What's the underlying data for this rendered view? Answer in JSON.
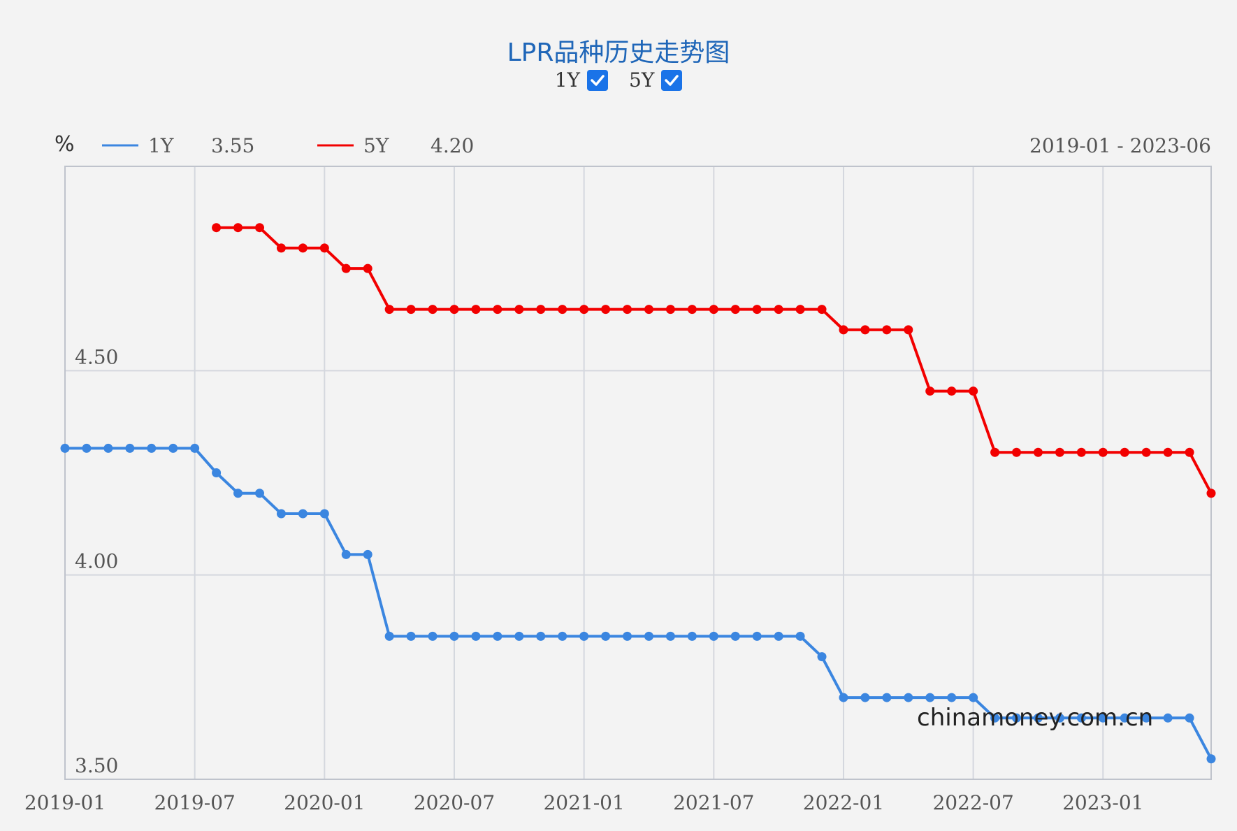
{
  "header": {
    "title": "LPR品种历史走势图",
    "toggles": [
      {
        "label": "1Y",
        "checked": true
      },
      {
        "label": "5Y",
        "checked": true
      }
    ]
  },
  "legend": {
    "unit": "%",
    "items": [
      {
        "name": "1Y",
        "latest": "3.55",
        "color": "#3b86e0"
      },
      {
        "name": "5Y",
        "latest": "4.20",
        "color": "#f20000"
      }
    ],
    "range_text": "2019-01 - 2023-06"
  },
  "watermark": "chinamoney.com.cn",
  "chart_data": {
    "type": "line",
    "x": [
      "2019-01",
      "2019-02",
      "2019-03",
      "2019-04",
      "2019-05",
      "2019-06",
      "2019-07",
      "2019-08",
      "2019-09",
      "2019-10",
      "2019-11",
      "2019-12",
      "2020-01",
      "2020-02",
      "2020-03",
      "2020-04",
      "2020-05",
      "2020-06",
      "2020-07",
      "2020-08",
      "2020-09",
      "2020-10",
      "2020-11",
      "2020-12",
      "2021-01",
      "2021-02",
      "2021-03",
      "2021-04",
      "2021-05",
      "2021-06",
      "2021-07",
      "2021-08",
      "2021-09",
      "2021-10",
      "2021-11",
      "2021-12",
      "2022-01",
      "2022-02",
      "2022-03",
      "2022-04",
      "2022-05",
      "2022-06",
      "2022-07",
      "2022-08",
      "2022-09",
      "2022-10",
      "2022-11",
      "2022-12",
      "2023-01",
      "2023-02",
      "2023-03",
      "2023-04",
      "2023-05",
      "2023-06"
    ],
    "series": [
      {
        "name": "1Y",
        "color": "#3b86e0",
        "values": [
          4.31,
          4.31,
          4.31,
          4.31,
          4.31,
          4.31,
          4.31,
          4.25,
          4.2,
          4.2,
          4.15,
          4.15,
          4.15,
          4.05,
          4.05,
          3.85,
          3.85,
          3.85,
          3.85,
          3.85,
          3.85,
          3.85,
          3.85,
          3.85,
          3.85,
          3.85,
          3.85,
          3.85,
          3.85,
          3.85,
          3.85,
          3.85,
          3.85,
          3.85,
          3.85,
          3.8,
          3.7,
          3.7,
          3.7,
          3.7,
          3.7,
          3.7,
          3.7,
          3.65,
          3.65,
          3.65,
          3.65,
          3.65,
          3.65,
          3.65,
          3.65,
          3.65,
          3.65,
          3.55
        ]
      },
      {
        "name": "5Y",
        "color": "#f20000",
        "values": [
          null,
          null,
          null,
          null,
          null,
          null,
          null,
          4.85,
          4.85,
          4.85,
          4.8,
          4.8,
          4.8,
          4.75,
          4.75,
          4.65,
          4.65,
          4.65,
          4.65,
          4.65,
          4.65,
          4.65,
          4.65,
          4.65,
          4.65,
          4.65,
          4.65,
          4.65,
          4.65,
          4.65,
          4.65,
          4.65,
          4.65,
          4.65,
          4.65,
          4.65,
          4.6,
          4.6,
          4.6,
          4.6,
          4.45,
          4.45,
          4.45,
          4.3,
          4.3,
          4.3,
          4.3,
          4.3,
          4.3,
          4.3,
          4.3,
          4.3,
          4.3,
          4.2
        ]
      }
    ],
    "xticks": [
      "2019-01",
      "2019-07",
      "2020-01",
      "2020-07",
      "2021-01",
      "2021-07",
      "2022-01",
      "2022-07",
      "2023-01"
    ],
    "yticks": [
      "3.50",
      "4.00",
      "4.50"
    ],
    "ylim": [
      3.5,
      5.0
    ],
    "grid": true
  }
}
